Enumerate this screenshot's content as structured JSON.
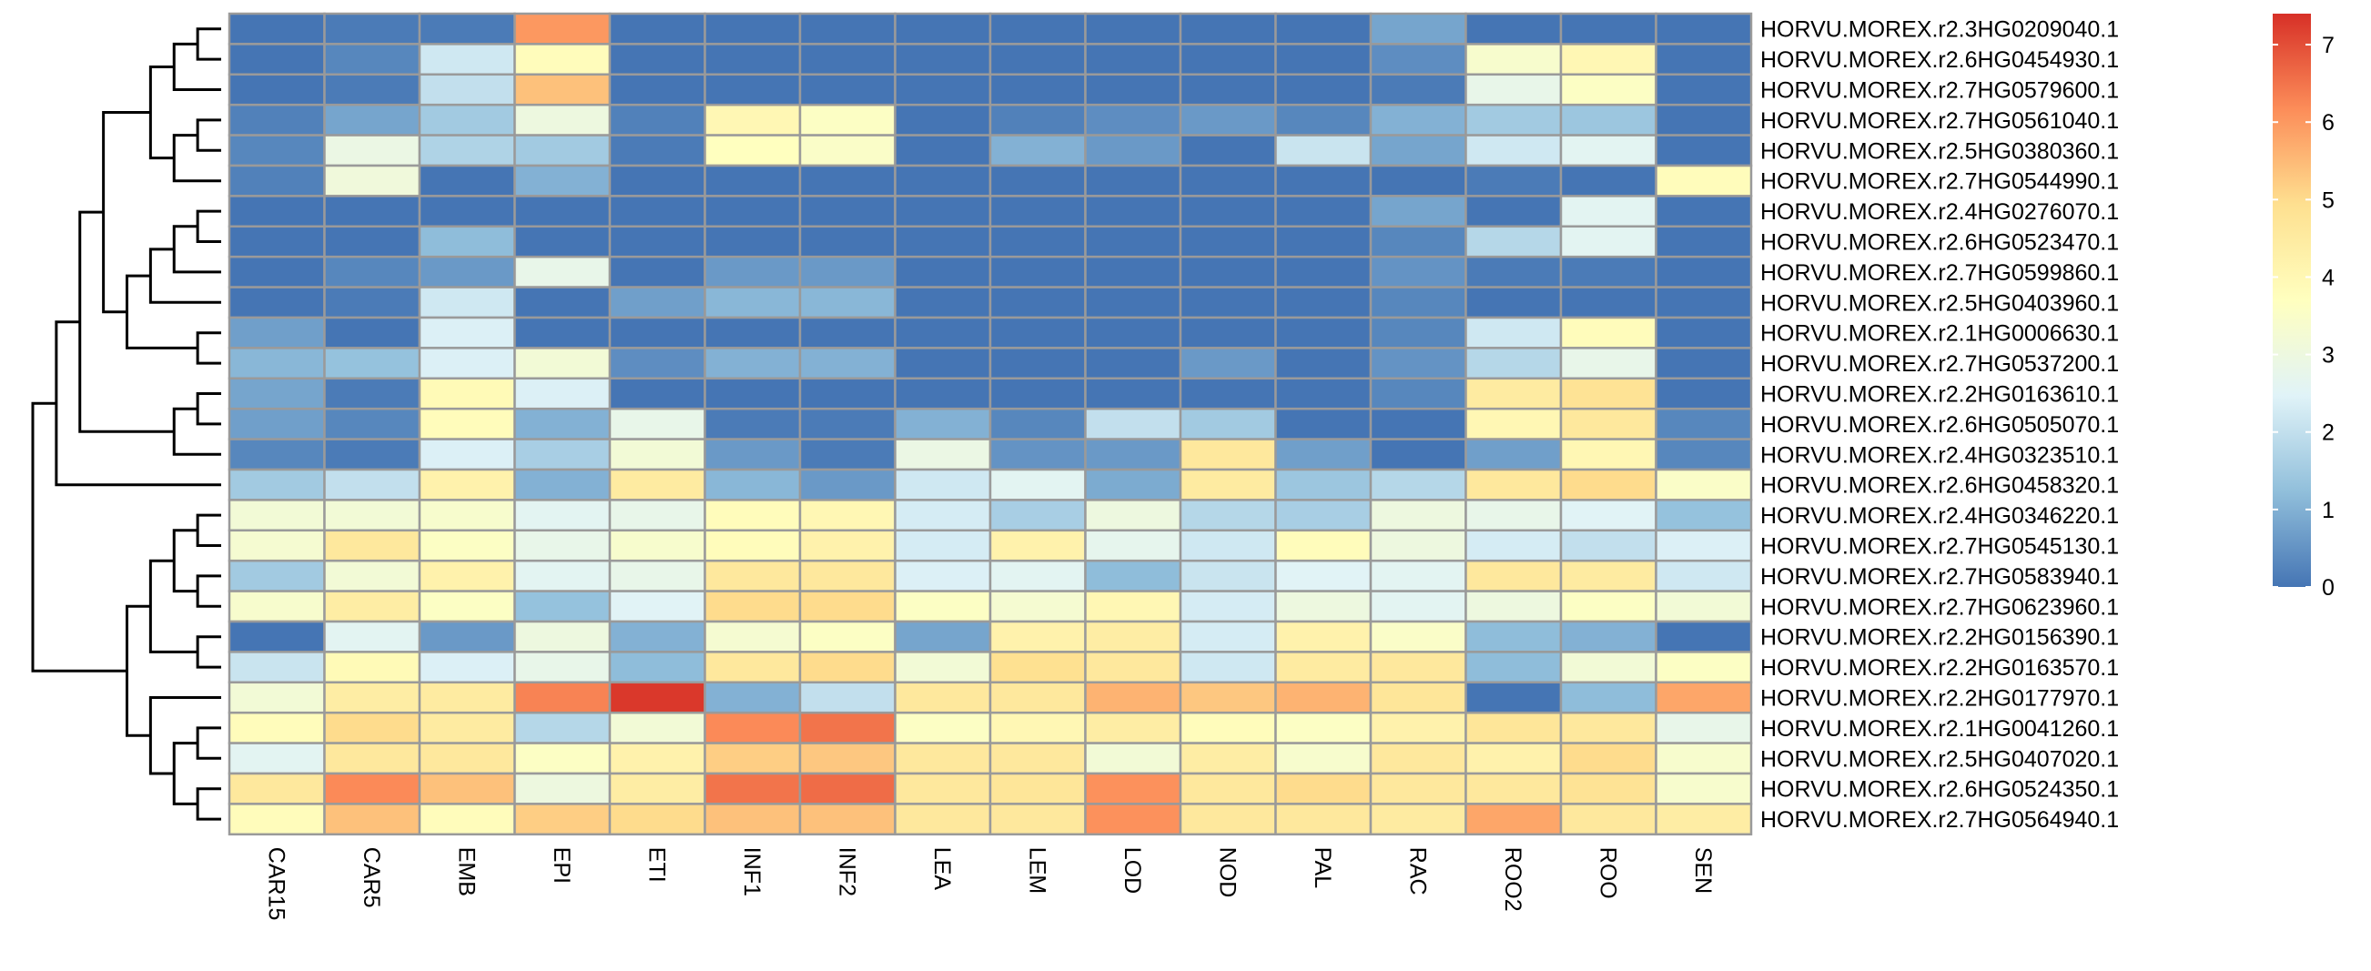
{
  "chart_data": {
    "type": "heatmap",
    "title": "",
    "xlabel": "",
    "ylabel": "",
    "columns": [
      "CAR15",
      "CAR5",
      "EMB",
      "EPI",
      "ETI",
      "INF1",
      "INF2",
      "LEA",
      "LEM",
      "LOD",
      "NOD",
      "PAL",
      "RAC",
      "ROO2",
      "ROO",
      "SEN"
    ],
    "rows": [
      "HORVU.MOREX.r2.3HG0209040.1",
      "HORVU.MOREX.r2.6HG0454930.1",
      "HORVU.MOREX.r2.7HG0579600.1",
      "HORVU.MOREX.r2.7HG0561040.1",
      "HORVU.MOREX.r2.5HG0380360.1",
      "HORVU.MOREX.r2.7HG0544990.1",
      "HORVU.MOREX.r2.4HG0276070.1",
      "HORVU.MOREX.r2.6HG0523470.1",
      "HORVU.MOREX.r2.7HG0599860.1",
      "HORVU.MOREX.r2.5HG0403960.1",
      "HORVU.MOREX.r2.1HG0006630.1",
      "HORVU.MOREX.r2.7HG0537200.1",
      "HORVU.MOREX.r2.2HG0163610.1",
      "HORVU.MOREX.r2.6HG0505070.1",
      "HORVU.MOREX.r2.4HG0323510.1",
      "HORVU.MOREX.r2.6HG0458320.1",
      "HORVU.MOREX.r2.4HG0346220.1",
      "HORVU.MOREX.r2.7HG0545130.1",
      "HORVU.MOREX.r2.7HG0583940.1",
      "HORVU.MOREX.r2.7HG0623960.1",
      "HORVU.MOREX.r2.2HG0156390.1",
      "HORVU.MOREX.r2.2HG0163570.1",
      "HORVU.MOREX.r2.2HG0177970.1",
      "HORVU.MOREX.r2.1HG0041260.1",
      "HORVU.MOREX.r2.5HG0407020.1",
      "HORVU.MOREX.r2.6HG0524350.1",
      "HORVU.MOREX.r2.7HG0564940.1"
    ],
    "values": [
      [
        0.0,
        0.1,
        0.1,
        6.0,
        0.0,
        0.0,
        0.0,
        0.0,
        0.0,
        0.0,
        0.0,
        0.0,
        0.8,
        0.0,
        0.0,
        0.0
      ],
      [
        0.0,
        0.3,
        2.2,
        3.8,
        0.0,
        0.0,
        0.0,
        0.0,
        0.0,
        0.0,
        0.0,
        0.0,
        0.4,
        3.4,
        4.0,
        0.0
      ],
      [
        0.0,
        0.1,
        2.0,
        5.4,
        0.0,
        0.0,
        0.0,
        0.0,
        0.0,
        0.0,
        0.0,
        0.0,
        0.1,
        2.8,
        3.6,
        0.0
      ],
      [
        0.2,
        0.8,
        1.5,
        3.0,
        0.2,
        4.0,
        3.6,
        0.0,
        0.2,
        0.4,
        0.6,
        0.3,
        1.0,
        1.5,
        1.4,
        0.0
      ],
      [
        0.3,
        2.9,
        1.7,
        1.5,
        0.1,
        3.7,
        3.5,
        0.0,
        1.0,
        0.6,
        0.0,
        2.1,
        0.8,
        2.2,
        2.6,
        0.0
      ],
      [
        0.2,
        3.1,
        0.0,
        1.0,
        0.0,
        0.0,
        0.0,
        0.0,
        0.0,
        0.0,
        0.0,
        0.0,
        0.0,
        0.1,
        0.0,
        3.8
      ],
      [
        0.0,
        0.0,
        0.0,
        0.0,
        0.0,
        0.0,
        0.0,
        0.0,
        0.0,
        0.0,
        0.0,
        0.0,
        0.8,
        0.0,
        2.6,
        0.0
      ],
      [
        0.0,
        0.0,
        1.2,
        0.0,
        0.0,
        0.0,
        0.0,
        0.0,
        0.0,
        0.0,
        0.0,
        0.0,
        0.3,
        1.8,
        2.6,
        0.0
      ],
      [
        0.0,
        0.3,
        0.6,
        2.8,
        0.0,
        0.6,
        0.6,
        0.0,
        0.0,
        0.0,
        0.0,
        0.0,
        0.5,
        0.1,
        0.1,
        0.0
      ],
      [
        0.0,
        0.1,
        2.2,
        0.0,
        0.7,
        1.1,
        1.1,
        0.0,
        0.0,
        0.0,
        0.0,
        0.0,
        0.3,
        0.0,
        0.0,
        0.0
      ],
      [
        0.7,
        0.0,
        2.4,
        0.0,
        0.0,
        0.0,
        0.0,
        0.0,
        0.0,
        0.0,
        0.0,
        0.0,
        0.3,
        2.2,
        3.8,
        0.0
      ],
      [
        1.1,
        1.3,
        2.4,
        3.2,
        0.4,
        1.0,
        1.0,
        0.0,
        0.0,
        0.0,
        0.6,
        0.0,
        0.5,
        1.8,
        2.8,
        0.0
      ],
      [
        0.8,
        0.1,
        3.9,
        2.4,
        0.0,
        0.0,
        0.0,
        0.0,
        0.0,
        0.0,
        0.0,
        0.0,
        0.3,
        4.5,
        4.8,
        0.0
      ],
      [
        0.7,
        0.3,
        3.8,
        1.0,
        2.8,
        0.1,
        0.1,
        1.0,
        0.3,
        2.0,
        1.5,
        0.0,
        0.0,
        4.0,
        4.6,
        0.3
      ],
      [
        0.3,
        0.1,
        2.4,
        1.6,
        3.2,
        0.6,
        0.1,
        2.9,
        0.5,
        0.6,
        4.6,
        0.7,
        0.0,
        0.7,
        4.0,
        0.3
      ],
      [
        1.5,
        2.0,
        4.2,
        1.0,
        4.5,
        1.1,
        0.6,
        2.2,
        2.6,
        0.9,
        4.5,
        1.4,
        1.8,
        4.6,
        5.0,
        3.5
      ],
      [
        3.2,
        3.2,
        3.4,
        2.6,
        2.8,
        3.8,
        4.0,
        2.3,
        1.6,
        3.0,
        1.8,
        1.6,
        3.0,
        2.8,
        2.5,
        1.3
      ],
      [
        3.3,
        4.6,
        3.6,
        2.8,
        3.4,
        3.8,
        4.2,
        2.3,
        4.2,
        2.7,
        2.2,
        3.8,
        3.0,
        2.3,
        2.0,
        2.4
      ],
      [
        1.5,
        3.2,
        4.2,
        2.6,
        2.8,
        4.6,
        4.6,
        2.4,
        2.6,
        1.2,
        2.1,
        2.5,
        2.6,
        4.6,
        4.5,
        2.2
      ],
      [
        3.4,
        4.4,
        3.6,
        1.3,
        2.5,
        5.0,
        5.0,
        3.6,
        3.3,
        4.0,
        2.3,
        3.0,
        2.6,
        3.0,
        3.6,
        3.2
      ],
      [
        0.0,
        2.6,
        0.6,
        3.0,
        1.0,
        3.3,
        3.6,
        0.8,
        4.2,
        4.4,
        2.3,
        4.2,
        3.5,
        1.2,
        1.0,
        0.0
      ],
      [
        2.1,
        3.9,
        2.4,
        2.8,
        1.2,
        4.6,
        5.0,
        3.2,
        4.9,
        4.6,
        2.2,
        4.5,
        4.6,
        1.2,
        3.2,
        3.6
      ],
      [
        3.2,
        4.4,
        4.5,
        6.3,
        7.3,
        1.0,
        2.0,
        4.6,
        4.6,
        5.6,
        5.3,
        5.6,
        4.7,
        0.0,
        1.2,
        5.8
      ],
      [
        3.8,
        5.0,
        4.5,
        1.8,
        3.2,
        6.2,
        6.5,
        3.6,
        4.0,
        4.4,
        3.8,
        3.6,
        4.2,
        4.7,
        4.6,
        2.8
      ],
      [
        2.6,
        4.6,
        4.6,
        3.6,
        4.2,
        5.2,
        5.3,
        4.6,
        4.6,
        3.2,
        4.4,
        3.4,
        4.6,
        4.2,
        5.0,
        3.4
      ],
      [
        4.6,
        6.2,
        5.4,
        3.0,
        4.4,
        6.5,
        6.6,
        4.6,
        4.7,
        6.1,
        4.6,
        5.0,
        4.6,
        4.6,
        4.8,
        3.4
      ],
      [
        3.8,
        5.4,
        3.8,
        5.2,
        5.0,
        5.4,
        5.4,
        4.6,
        4.6,
        6.1,
        4.6,
        4.6,
        4.5,
        5.8,
        4.6,
        4.4
      ]
    ],
    "color_scale": {
      "min": 0,
      "max": 7.4,
      "stops": [
        "#4575B4",
        "#91BFDB",
        "#E0F3F8",
        "#FFFFBF",
        "#FEE090",
        "#FC8D59",
        "#D73027"
      ],
      "ticks": [
        "0",
        "1",
        "2",
        "3",
        "4",
        "5",
        "6",
        "7"
      ],
      "tick_values": [
        0,
        1,
        2,
        3,
        4,
        5,
        6,
        7
      ]
    },
    "grid": true,
    "legend": "right",
    "dendrogram": "rows-left"
  }
}
